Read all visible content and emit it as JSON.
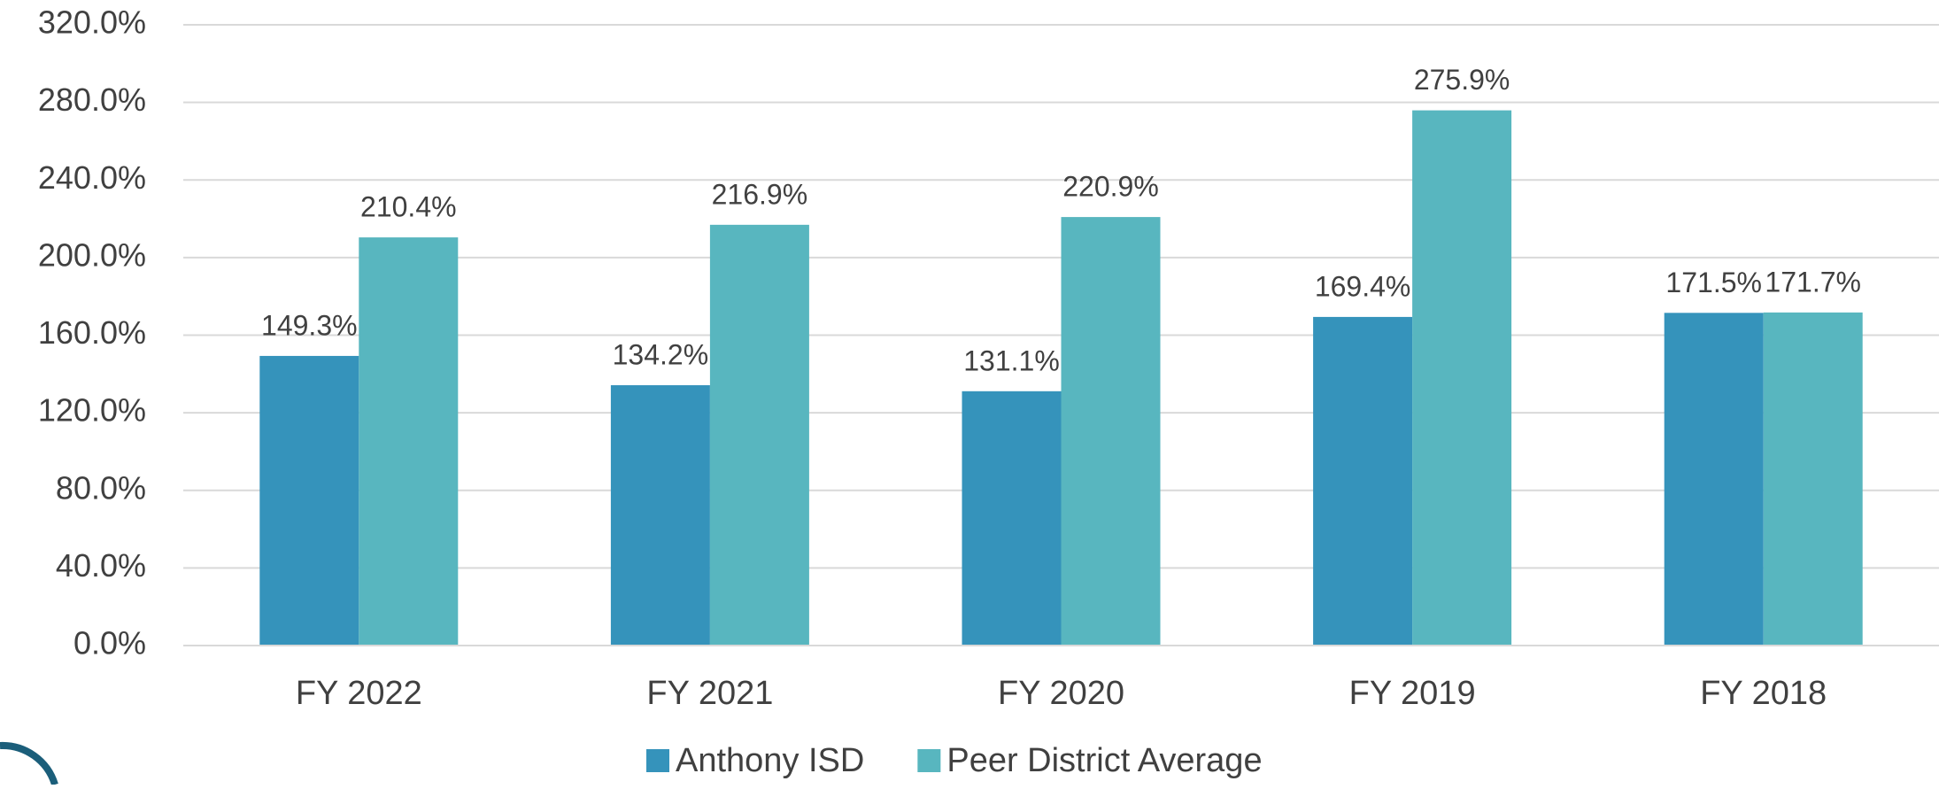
{
  "chart_data": {
    "type": "bar",
    "categories": [
      "FY 2022",
      "FY 2021",
      "FY 2020",
      "FY 2019",
      "FY 2018"
    ],
    "series": [
      {
        "name": "Anthony ISD",
        "color": "#3593bb",
        "values": [
          149.3,
          134.2,
          131.1,
          169.4,
          171.5
        ],
        "value_labels": [
          "149.3%",
          "134.2%",
          "131.1%",
          "169.4%",
          "171.5%"
        ]
      },
      {
        "name": "Peer District Average",
        "color": "#58b6bf",
        "values": [
          210.4,
          216.9,
          220.9,
          275.9,
          171.7
        ],
        "value_labels": [
          "210.4%",
          "216.9%",
          "220.9%",
          "275.9%",
          "171.7%"
        ]
      }
    ],
    "ylim": [
      0,
      320
    ],
    "yticks": [
      {
        "value": 0,
        "label": "0.0%"
      },
      {
        "value": 40,
        "label": "40.0%"
      },
      {
        "value": 80,
        "label": "80.0%"
      },
      {
        "value": 120,
        "label": "120.0%"
      },
      {
        "value": 160,
        "label": "160.0%"
      },
      {
        "value": 200,
        "label": "200.0%"
      },
      {
        "value": 240,
        "label": "240.0%"
      },
      {
        "value": 280,
        "label": "280.0%"
      },
      {
        "value": 320,
        "label": "320.0%"
      }
    ],
    "grid": true,
    "legend": "bottom"
  }
}
